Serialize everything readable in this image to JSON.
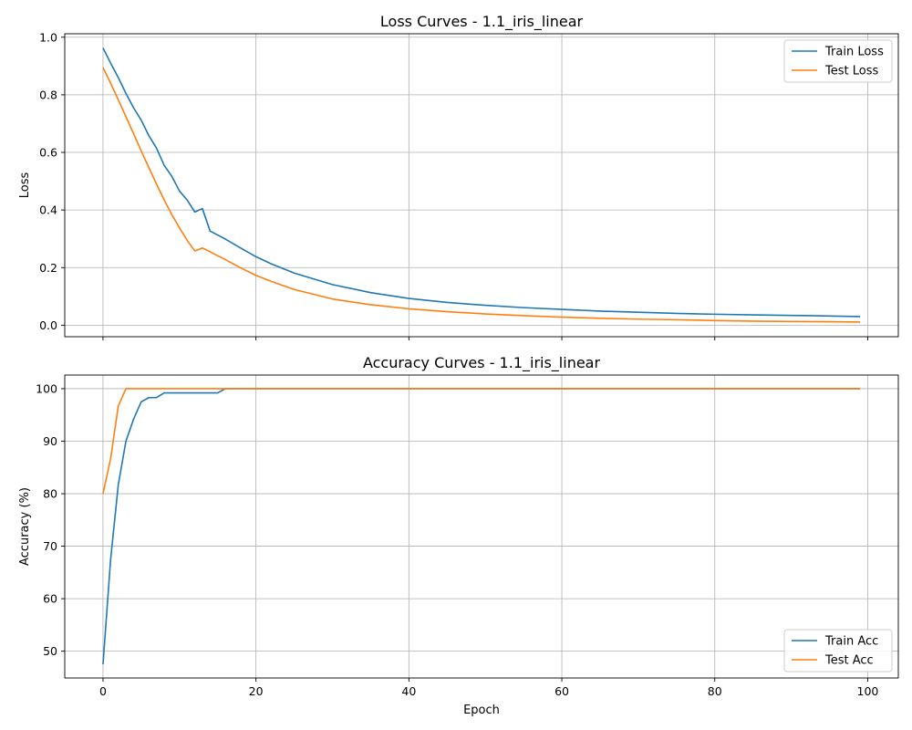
{
  "chart_data": [
    {
      "type": "line",
      "title": "Loss Curves - 1.1_iris_linear",
      "xlabel": "",
      "ylabel": "Loss",
      "xlim": [
        -5,
        104
      ],
      "ylim": [
        -0.04,
        1.012
      ],
      "xticks": [
        0,
        20,
        40,
        60,
        80,
        100
      ],
      "xtick_labels": [
        "",
        "",
        "",
        "",
        "",
        ""
      ],
      "yticks": [
        0.0,
        0.2,
        0.4,
        0.6,
        0.8,
        1.0
      ],
      "ytick_labels": [
        "0.0",
        "0.2",
        "0.4",
        "0.6",
        "0.8",
        "1.0"
      ],
      "grid": true,
      "legend_position": "upper-right",
      "series": [
        {
          "name": "Train Loss",
          "color": "#1f77b4",
          "x": [
            0,
            1,
            2,
            3,
            4,
            5,
            6,
            7,
            8,
            9,
            10,
            11,
            12,
            13,
            14,
            15,
            16,
            18,
            20,
            22,
            25,
            30,
            35,
            40,
            45,
            50,
            55,
            60,
            65,
            70,
            75,
            80,
            85,
            90,
            95,
            99
          ],
          "y": [
            0.963,
            0.91,
            0.86,
            0.805,
            0.755,
            0.712,
            0.658,
            0.615,
            0.555,
            0.517,
            0.466,
            0.435,
            0.393,
            0.405,
            0.327,
            0.313,
            0.299,
            0.268,
            0.238,
            0.213,
            0.181,
            0.141,
            0.113,
            0.093,
            0.079,
            0.069,
            0.061,
            0.055,
            0.049,
            0.045,
            0.041,
            0.038,
            0.036,
            0.034,
            0.032,
            0.03
          ]
        },
        {
          "name": "Test Loss",
          "color": "#ff7f0e",
          "x": [
            0,
            1,
            2,
            3,
            4,
            5,
            6,
            7,
            8,
            9,
            10,
            11,
            12,
            13,
            14,
            15,
            16,
            18,
            20,
            22,
            25,
            30,
            35,
            40,
            45,
            50,
            55,
            60,
            65,
            70,
            75,
            80,
            85,
            90,
            95,
            99
          ],
          "y": [
            0.895,
            0.84,
            0.783,
            0.724,
            0.665,
            0.605,
            0.547,
            0.49,
            0.435,
            0.384,
            0.338,
            0.295,
            0.258,
            0.268,
            0.255,
            0.241,
            0.228,
            0.199,
            0.173,
            0.152,
            0.124,
            0.091,
            0.071,
            0.057,
            0.047,
            0.039,
            0.033,
            0.028,
            0.024,
            0.021,
            0.019,
            0.016,
            0.014,
            0.013,
            0.012,
            0.011
          ]
        }
      ]
    },
    {
      "type": "line",
      "title": "Accuracy Curves - 1.1_iris_linear",
      "xlabel": "Epoch",
      "ylabel": "Accuracy (%)",
      "xlim": [
        -5,
        104
      ],
      "ylim": [
        44.9,
        102.6
      ],
      "xticks": [
        0,
        20,
        40,
        60,
        80,
        100
      ],
      "xtick_labels": [
        "0",
        "20",
        "40",
        "60",
        "80",
        "100"
      ],
      "yticks": [
        50,
        60,
        70,
        80,
        90,
        100
      ],
      "ytick_labels": [
        "50",
        "60",
        "70",
        "80",
        "90",
        "100"
      ],
      "grid": true,
      "legend_position": "lower-right",
      "series": [
        {
          "name": "Train Acc",
          "color": "#1f77b4",
          "x": [
            0,
            1,
            2,
            3,
            4,
            5,
            6,
            7,
            8,
            9,
            10,
            11,
            12,
            13,
            14,
            15,
            16,
            20,
            40,
            60,
            80,
            99
          ],
          "y": [
            47.5,
            67.5,
            81.7,
            90.0,
            94.2,
            97.5,
            98.3,
            98.3,
            99.2,
            99.2,
            99.2,
            99.2,
            99.2,
            99.2,
            99.2,
            99.2,
            100,
            100,
            100,
            100,
            100,
            100
          ]
        },
        {
          "name": "Test Acc",
          "color": "#ff7f0e",
          "x": [
            0,
            1,
            2,
            3,
            4,
            10,
            20,
            40,
            60,
            80,
            99
          ],
          "y": [
            80.0,
            86.7,
            96.7,
            100,
            100,
            100,
            100,
            100,
            100,
            100,
            100
          ]
        }
      ]
    }
  ]
}
